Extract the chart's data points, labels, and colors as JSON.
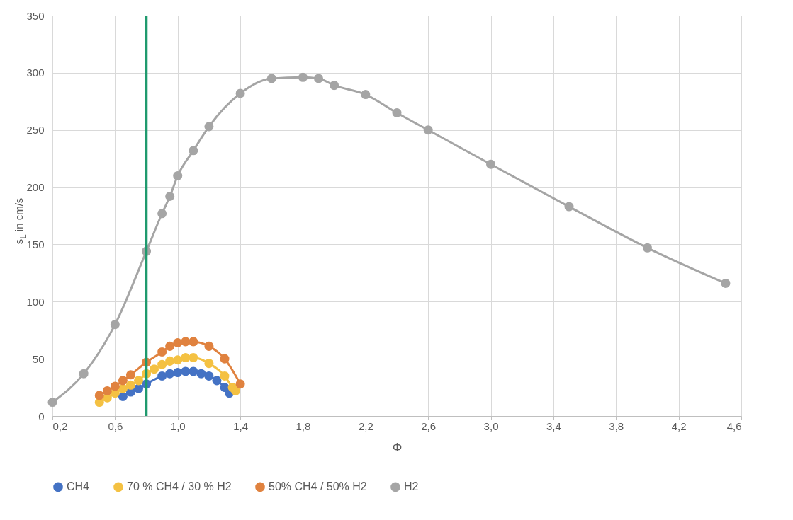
{
  "chart_data": {
    "type": "line",
    "xlabel": "Φ",
    "ylabel": "s$_{L}$ in cm/s",
    "xlim": [
      0.2,
      4.6
    ],
    "xticks": [
      {
        "value": 0.2,
        "label": "0,2"
      },
      {
        "value": 0.6,
        "label": "0,6"
      },
      {
        "value": 1.0,
        "label": "1,0"
      },
      {
        "value": 1.4,
        "label": "1,4"
      },
      {
        "value": 1.8,
        "label": "1,8"
      },
      {
        "value": 2.2,
        "label": "2,2"
      },
      {
        "value": 2.6,
        "label": "2,6"
      },
      {
        "value": 3.0,
        "label": "3,0"
      },
      {
        "value": 3.4,
        "label": "3,4"
      },
      {
        "value": 3.8,
        "label": "3,8"
      },
      {
        "value": 4.2,
        "label": "4,2"
      },
      {
        "value": 4.6,
        "label": "4,6"
      }
    ],
    "ylim": [
      0,
      350
    ],
    "yticks": [
      0,
      50,
      100,
      150,
      200,
      250,
      300,
      350
    ],
    "grid": true,
    "legend": "bottom",
    "marker": "circle",
    "line_style": "solid",
    "series": [
      {
        "name": "CH4",
        "color": "#4472c4",
        "x": [
          0.65,
          0.7,
          0.75,
          0.8,
          0.9,
          0.95,
          1.0,
          1.05,
          1.1,
          1.15,
          1.2,
          1.25,
          1.3,
          1.33
        ],
        "values": [
          17,
          21,
          24,
          28,
          35,
          37,
          38,
          39,
          39,
          37,
          35,
          31,
          25,
          20
        ]
      },
      {
        "name": "70 % CH4 / 30 % H2",
        "color": "#f4c142",
        "x": [
          0.5,
          0.55,
          0.6,
          0.65,
          0.7,
          0.75,
          0.8,
          0.85,
          0.9,
          0.95,
          1.0,
          1.05,
          1.1,
          1.2,
          1.3,
          1.35,
          1.37
        ],
        "values": [
          12,
          16,
          20,
          24,
          27,
          31,
          37,
          41,
          45,
          48,
          49,
          51,
          51,
          46,
          35,
          25,
          22
        ]
      },
      {
        "name": "50% CH4 / 50% H2",
        "color": "#e0823f",
        "x": [
          0.5,
          0.55,
          0.6,
          0.65,
          0.7,
          0.8,
          0.9,
          0.95,
          1.0,
          1.05,
          1.1,
          1.2,
          1.3,
          1.4
        ],
        "values": [
          18,
          22,
          26,
          31,
          36,
          47,
          56,
          61,
          64,
          65,
          65,
          61,
          50,
          28
        ]
      },
      {
        "name": "H2",
        "color": "#a5a5a5",
        "x": [
          0.2,
          0.4,
          0.6,
          0.8,
          0.9,
          0.95,
          1.0,
          1.1,
          1.2,
          1.4,
          1.6,
          1.8,
          1.9,
          2.0,
          2.2,
          2.4,
          2.6,
          3.0,
          3.5,
          4.0,
          4.5
        ],
        "values": [
          12,
          37,
          80,
          144,
          177,
          192,
          210,
          232,
          253,
          282,
          295,
          296,
          295,
          289,
          281,
          265,
          250,
          220,
          183,
          147,
          116
        ]
      }
    ],
    "ref_lines": [
      {
        "axis": "x",
        "value": 0.8,
        "color": "#1f9a6e",
        "line_style": "solid"
      }
    ]
  }
}
